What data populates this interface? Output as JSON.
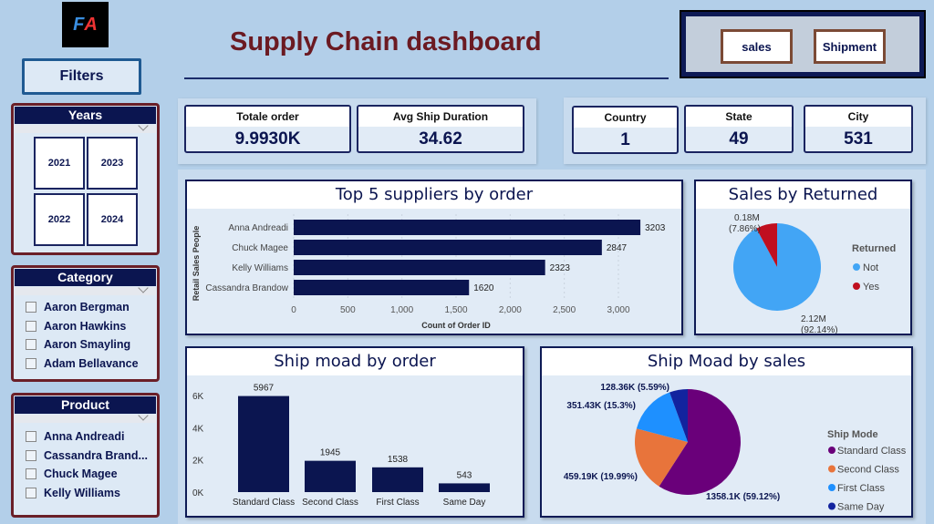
{
  "logo": {
    "text": "FA"
  },
  "filters_label": "Filters",
  "title": "Supply Chain dashboard",
  "nav": {
    "sales": "sales",
    "shipment": "Shipment"
  },
  "years": {
    "title": "Years",
    "items": [
      "2021",
      "2023",
      "2022",
      "2024"
    ]
  },
  "category": {
    "title": "Category",
    "items": [
      "Aaron Bergman",
      "Aaron Hawkins",
      "Aaron Smayling",
      "Adam Bellavance"
    ]
  },
  "product": {
    "title": "Product",
    "items": [
      "Anna Andreadi",
      "Cassandra Brand...",
      "Chuck Magee",
      "Kelly Williams"
    ]
  },
  "kpis": [
    {
      "label": "Totale order",
      "value": "9.9930K"
    },
    {
      "label": "Avg Ship Duration",
      "value": "34.62"
    },
    {
      "label": "Country",
      "value": "1"
    },
    {
      "label": "State",
      "value": "49"
    },
    {
      "label": "City",
      "value": "531"
    }
  ],
  "colors": {
    "navy": "#0b1550",
    "maroon": "#6b1a22",
    "purple": "#6a007a",
    "orange": "#e8743b",
    "lightblue": "#1e90ff",
    "darkblue": "#12239e",
    "not": "#42a5f5",
    "yes": "#c00f1f"
  },
  "chart_data": [
    {
      "type": "bar",
      "orientation": "horizontal",
      "title": "Top 5 suppliers by order",
      "categories": [
        "Anna Andreadi",
        "Chuck Magee",
        "Kelly Williams",
        "Cassandra Brandow"
      ],
      "values": [
        3203,
        2847,
        2323,
        1620
      ],
      "xlabel": "Count of Order ID",
      "ylabel": "Retail Sales People",
      "xlim": [
        0,
        3300
      ],
      "xticks": [
        "0",
        "500",
        "1,000",
        "1,500",
        "2,000",
        "2,500",
        "3,000"
      ]
    },
    {
      "type": "pie",
      "title": "Sales by Returned",
      "legend_title": "Returned",
      "categories": [
        "Not",
        "Yes"
      ],
      "values": [
        2.12,
        0.18
      ],
      "labels": [
        "2.12M",
        "0.18M"
      ],
      "percents": [
        "(92.14%)",
        "(7.86%)"
      ],
      "percent_values": [
        92.14,
        7.86
      ]
    },
    {
      "type": "bar",
      "title": "Ship moad by order",
      "categories": [
        "Standard Class",
        "Second Class",
        "First Class",
        "Same Day"
      ],
      "values": [
        5967,
        1945,
        1538,
        543
      ],
      "ylim": [
        0,
        6000
      ],
      "yticks": [
        "0K",
        "2K",
        "4K",
        "6K"
      ]
    },
    {
      "type": "pie",
      "title": "Ship Moad by sales",
      "legend_title": "Ship Mode",
      "categories": [
        "Standard Class",
        "Second Class",
        "First Class",
        "Same Day"
      ],
      "values": [
        1358.1,
        459.19,
        351.43,
        128.36
      ],
      "percent_values": [
        59.12,
        19.99,
        15.3,
        5.59
      ],
      "labels": [
        "1358.1K (59.12%)",
        "459.19K (19.99%)",
        "351.43K (15.3%)",
        "128.36K (5.59%)"
      ]
    }
  ]
}
